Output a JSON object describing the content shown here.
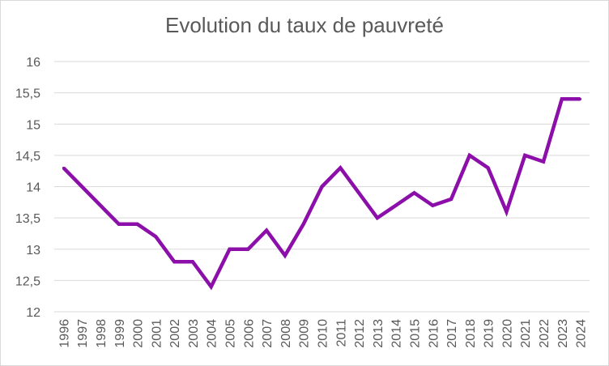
{
  "chart_data": {
    "type": "line",
    "title": "Evolution du taux de pauvreté",
    "xlabel": "",
    "ylabel": "",
    "ylim": [
      12,
      16
    ],
    "y_ticks": [
      "12",
      "12,5",
      "13",
      "13,5",
      "14",
      "14,5",
      "15",
      "15,5",
      "16"
    ],
    "y_tick_values": [
      12,
      12.5,
      13,
      13.5,
      14,
      14.5,
      15,
      15.5,
      16
    ],
    "categories": [
      "1996",
      "1997",
      "1998",
      "1999",
      "2000",
      "2001",
      "2002",
      "2003",
      "2004",
      "2005",
      "2006",
      "2007",
      "2008",
      "2009",
      "2010",
      "2011",
      "2012",
      "2013",
      "2014",
      "2015",
      "2016",
      "2017",
      "2018",
      "2019",
      "2020",
      "2021",
      "2022",
      "2023",
      "2024"
    ],
    "values": [
      14.3,
      14.0,
      13.7,
      13.4,
      13.4,
      13.2,
      12.8,
      12.8,
      12.4,
      13.0,
      13.0,
      13.3,
      12.9,
      13.4,
      14.0,
      14.3,
      13.9,
      13.5,
      13.7,
      13.9,
      13.7,
      13.8,
      14.5,
      14.3,
      13.6,
      14.5,
      14.4,
      15.4,
      15.4
    ],
    "grid": true,
    "legend": "none",
    "line_color": "#8b0fa8",
    "grid_color": "#d9d9d9"
  }
}
